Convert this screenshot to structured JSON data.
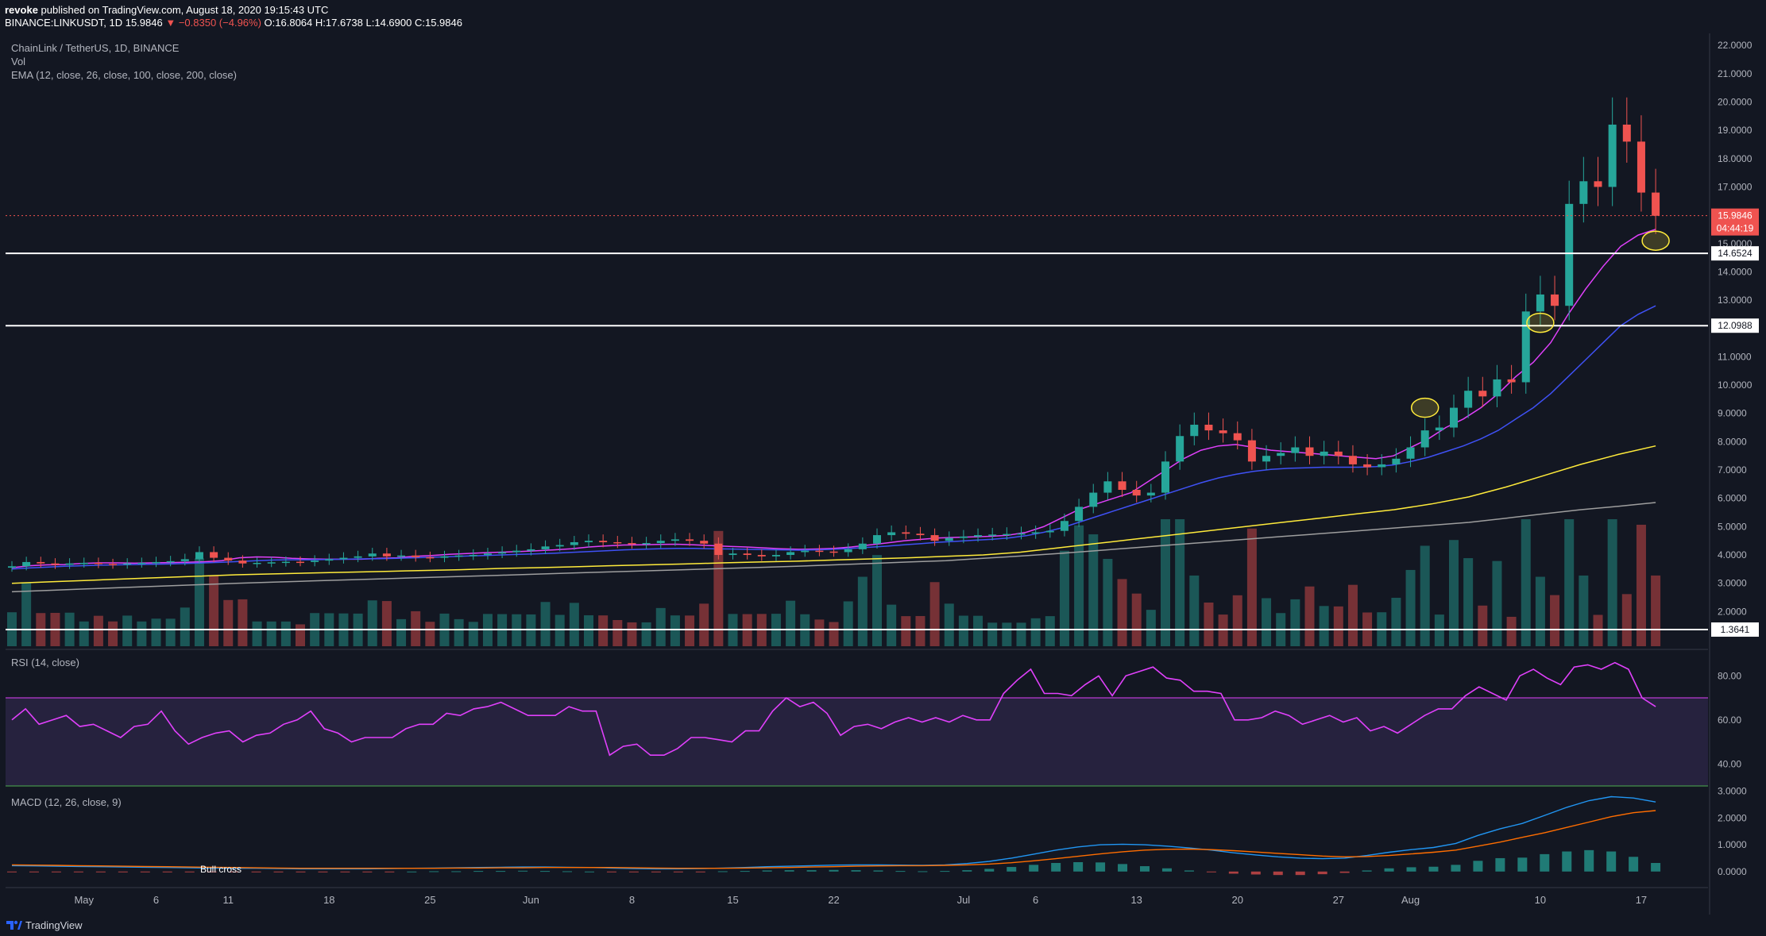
{
  "header": {
    "publisher": "revoke",
    "published_text": "published on TradingView.com, August 18, 2020 19:15:43 UTC",
    "symbol": "BINANCE:LINKUSDT, 1D",
    "last": "15.9846",
    "change": "−0.8350 (−4.96%)",
    "ohlc_open": "O:16.8064",
    "ohlc_high": "H:17.6738",
    "ohlc_low": "L:14.6900",
    "ohlc_close": "C:15.9846"
  },
  "legend": {
    "title": "ChainLink / TetherUS, 1D, BINANCE",
    "vol": "Vol",
    "ema": "EMA (12, close, 26, close, 100, close, 200, close)",
    "rsi": "RSI (14, close)",
    "macd": "MACD (12, 26, close, 9)",
    "annotation_bull": "Bull cross"
  },
  "footer": {
    "brand": "TradingView"
  },
  "colors": {
    "up": "#26a69a",
    "down": "#ef5350",
    "ema12": "#e040fb",
    "ema26": "#3f51f5",
    "ema100": "#ffeb3b",
    "ema200": "#9e9e9e",
    "rsi": "#e040fb",
    "macd": "#2196f3",
    "signal": "#ff6d00"
  },
  "chart_data": [
    {
      "type": "candlestick",
      "title": "ChainLink / TetherUS, 1D, BINANCE",
      "x_start": "2020-04-26",
      "x_ticks": [
        "May",
        "6",
        "11",
        "18",
        "25",
        "Jun",
        "8",
        "15",
        "22",
        "Jul",
        "6",
        "13",
        "20",
        "27",
        "Aug",
        "10",
        "17"
      ],
      "x_tick_dates": [
        "2020-05-01",
        "2020-05-06",
        "2020-05-11",
        "2020-05-18",
        "2020-05-25",
        "2020-06-01",
        "2020-06-08",
        "2020-06-15",
        "2020-06-22",
        "2020-07-01",
        "2020-07-06",
        "2020-07-13",
        "2020-07-20",
        "2020-07-27",
        "2020-08-01",
        "2020-08-10",
        "2020-08-17"
      ],
      "y_ticks": [
        "2.0000",
        "3.0000",
        "4.0000",
        "5.0000",
        "6.0000",
        "7.0000",
        "8.0000",
        "9.0000",
        "10.0000",
        "11.0000",
        "12.0000",
        "13.0000",
        "14.0000",
        "15.0000",
        "16.0000",
        "17.0000",
        "18.0000",
        "19.0000",
        "20.0000",
        "21.0000",
        "22.0000"
      ],
      "ylim": [
        1.0,
        22.2
      ],
      "horizontal_levels": [
        {
          "value": 14.6524,
          "label": "14.6524"
        },
        {
          "value": 12.0988,
          "label": "12.0988"
        },
        {
          "value": 1.3641,
          "label": "1.3641"
        }
      ],
      "last_price": {
        "value": 15.9846,
        "label": "15.9846",
        "countdown": "04:44:19"
      },
      "closes": [
        3.6,
        3.75,
        3.7,
        3.65,
        3.7,
        3.72,
        3.68,
        3.66,
        3.7,
        3.72,
        3.75,
        3.78,
        3.85,
        4.1,
        3.9,
        3.8,
        3.7,
        3.72,
        3.74,
        3.76,
        3.75,
        3.8,
        3.85,
        3.9,
        3.95,
        4.05,
        3.95,
        3.98,
        3.92,
        3.9,
        3.95,
        3.98,
        4.0,
        4.05,
        4.1,
        4.15,
        4.2,
        4.3,
        4.35,
        4.45,
        4.5,
        4.45,
        4.42,
        4.4,
        4.42,
        4.5,
        4.55,
        4.5,
        4.4,
        4.0,
        4.05,
        4.0,
        3.95,
        4.0,
        4.1,
        4.15,
        4.12,
        4.1,
        4.2,
        4.4,
        4.7,
        4.8,
        4.75,
        4.7,
        4.5,
        4.6,
        4.65,
        4.7,
        4.72,
        4.74,
        4.76,
        4.8,
        4.85,
        5.2,
        5.7,
        6.2,
        6.6,
        6.3,
        6.1,
        6.2,
        7.3,
        8.2,
        8.6,
        8.4,
        8.3,
        8.05,
        7.3,
        7.5,
        7.6,
        7.8,
        7.5,
        7.65,
        7.5,
        7.2,
        7.1,
        7.2,
        7.4,
        7.8,
        8.4,
        8.5,
        9.2,
        9.8,
        9.6,
        10.2,
        10.1,
        12.6,
        13.2,
        12.8,
        16.4,
        17.2,
        17.0,
        19.2,
        18.6,
        16.8,
        15.98
      ],
      "series": [
        {
          "name": "EMA 12",
          "start": 0,
          "values": [
            3.55,
            3.62,
            3.65,
            3.66,
            3.7,
            3.72,
            3.72,
            3.71,
            3.72,
            3.73,
            3.74,
            3.76,
            3.8,
            3.9,
            3.93,
            3.92,
            3.88,
            3.86,
            3.85,
            3.85,
            3.85,
            3.88,
            3.9,
            3.95,
            3.98,
            4.02,
            4.05,
            4.08,
            4.1,
            4.12,
            4.15,
            4.18,
            4.22,
            4.28,
            4.32,
            4.35,
            4.36,
            4.37,
            4.38,
            4.36,
            4.33,
            4.3,
            4.28,
            4.25,
            4.22,
            4.2,
            4.21,
            4.23,
            4.28,
            4.35,
            4.42,
            4.5,
            4.55,
            4.6,
            4.62,
            4.64,
            4.66,
            4.7,
            4.8,
            5.0,
            5.3,
            5.6,
            5.8,
            6.0,
            6.2,
            6.6,
            7.0,
            7.4,
            7.7,
            7.85,
            7.9,
            7.8,
            7.7,
            7.65,
            7.6,
            7.55,
            7.5,
            7.45,
            7.4,
            7.5,
            7.8,
            8.1,
            8.5,
            8.8,
            9.2,
            9.7,
            10.3,
            10.8,
            11.5,
            12.5,
            13.4,
            14.2,
            14.9,
            15.3,
            15.5
          ]
        },
        {
          "name": "EMA 26",
          "start": 0,
          "values": [
            3.5,
            3.54,
            3.57,
            3.6,
            3.62,
            3.64,
            3.65,
            3.66,
            3.67,
            3.68,
            3.7,
            3.72,
            3.74,
            3.77,
            3.8,
            3.82,
            3.83,
            3.83,
            3.84,
            3.85,
            3.86,
            3.87,
            3.88,
            3.9,
            3.92,
            3.94,
            3.96,
            3.98,
            4.0,
            4.02,
            4.04,
            4.06,
            4.09,
            4.12,
            4.15,
            4.18,
            4.2,
            4.22,
            4.23,
            4.23,
            4.22,
            4.21,
            4.2,
            4.19,
            4.18,
            4.17,
            4.18,
            4.2,
            4.23,
            4.27,
            4.31,
            4.36,
            4.4,
            4.45,
            4.48,
            4.52,
            4.55,
            4.6,
            4.68,
            4.8,
            4.95,
            5.15,
            5.35,
            5.55,
            5.75,
            5.95,
            6.15,
            6.35,
            6.55,
            6.72,
            6.85,
            6.95,
            7.02,
            7.06,
            7.08,
            7.1,
            7.1,
            7.1,
            7.12,
            7.18,
            7.3,
            7.45,
            7.65,
            7.85,
            8.1,
            8.4,
            8.8,
            9.2,
            9.7,
            10.3,
            10.9,
            11.5,
            12.1,
            12.5,
            12.8
          ]
        },
        {
          "name": "EMA 100",
          "start": 0,
          "values": [
            3.0,
            3.05,
            3.1,
            3.15,
            3.2,
            3.25,
            3.3,
            3.33,
            3.36,
            3.39,
            3.42,
            3.45,
            3.48,
            3.52,
            3.55,
            3.58,
            3.62,
            3.65,
            3.68,
            3.72,
            3.75,
            3.78,
            3.82,
            3.86,
            3.9,
            3.95,
            4.0,
            4.1,
            4.25,
            4.4,
            4.55,
            4.7,
            4.85,
            5.0,
            5.15,
            5.3,
            5.45,
            5.6,
            5.8,
            6.05,
            6.4,
            6.8,
            7.2,
            7.55,
            7.85
          ]
        },
        {
          "name": "EMA 200",
          "start": 0,
          "values": [
            2.7,
            2.75,
            2.8,
            2.85,
            2.9,
            2.95,
            3.0,
            3.04,
            3.08,
            3.12,
            3.16,
            3.2,
            3.24,
            3.28,
            3.32,
            3.36,
            3.4,
            3.44,
            3.48,
            3.52,
            3.56,
            3.6,
            3.65,
            3.7,
            3.75,
            3.8,
            3.88,
            3.96,
            4.05,
            4.15,
            4.25,
            4.35,
            4.45,
            4.55,
            4.65,
            4.75,
            4.85,
            4.95,
            5.05,
            5.15,
            5.3,
            5.45,
            5.6,
            5.72,
            5.85
          ]
        }
      ]
    },
    {
      "type": "line",
      "name": "RSI (14, close)",
      "y_ticks": [
        "40.00",
        "60.00",
        "80.00"
      ],
      "ylim": [
        30,
        92
      ],
      "band": [
        30,
        70
      ],
      "values": [
        60,
        65,
        58,
        60,
        62,
        57,
        58,
        55,
        52,
        57,
        58,
        64,
        55,
        49,
        52,
        54,
        55,
        50,
        53,
        54,
        58,
        60,
        64,
        56,
        54,
        50,
        52,
        52,
        52,
        56,
        58,
        58,
        63,
        62,
        65,
        66,
        68,
        65,
        62,
        62,
        62,
        66,
        64,
        64,
        44,
        48,
        49,
        44,
        44,
        47,
        52,
        52,
        51,
        50,
        55,
        55,
        64,
        70,
        66,
        68,
        63,
        53,
        57,
        58,
        56,
        59,
        61,
        59,
        61,
        59,
        62,
        60,
        60,
        72,
        78,
        83,
        72,
        72,
        71,
        76,
        80,
        71,
        80,
        82,
        84,
        79,
        78,
        73,
        73,
        72,
        60,
        60,
        61,
        64,
        62,
        58,
        60,
        62,
        59,
        61,
        55,
        57,
        54,
        58,
        62,
        65,
        65,
        71,
        75,
        72,
        69,
        80,
        83,
        79,
        76,
        84,
        85,
        83,
        86,
        83,
        70,
        66
      ]
    },
    {
      "type": "line",
      "name": "MACD (12, 26, close, 9)",
      "y_ticks": [
        "0.0000",
        "1.0000",
        "2.0000",
        "3.0000"
      ],
      "ylim": [
        -0.6,
        3.2
      ],
      "macd": [
        0.22,
        0.21,
        0.2,
        0.19,
        0.18,
        0.17,
        0.16,
        0.15,
        0.14,
        0.13,
        0.12,
        0.12,
        0.11,
        0.1,
        0.1,
        0.1,
        0.1,
        0.11,
        0.12,
        0.13,
        0.14,
        0.15,
        0.16,
        0.17,
        0.17,
        0.16,
        0.15,
        0.13,
        0.11,
        0.1,
        0.1,
        0.11,
        0.13,
        0.15,
        0.18,
        0.2,
        0.22,
        0.24,
        0.25,
        0.25,
        0.24,
        0.23,
        0.25,
        0.3,
        0.38,
        0.5,
        0.65,
        0.8,
        0.92,
        1.0,
        1.02,
        1.0,
        0.95,
        0.88,
        0.8,
        0.7,
        0.62,
        0.55,
        0.5,
        0.48,
        0.5,
        0.6,
        0.72,
        0.82,
        0.9,
        1.05,
        1.35,
        1.6,
        1.8,
        2.1,
        2.4,
        2.65,
        2.8,
        2.75,
        2.6
      ],
      "signal": [
        0.25,
        0.24,
        0.23,
        0.22,
        0.21,
        0.2,
        0.19,
        0.18,
        0.17,
        0.16,
        0.15,
        0.14,
        0.13,
        0.12,
        0.12,
        0.12,
        0.12,
        0.12,
        0.12,
        0.12,
        0.13,
        0.13,
        0.14,
        0.14,
        0.15,
        0.15,
        0.15,
        0.15,
        0.14,
        0.13,
        0.12,
        0.12,
        0.12,
        0.13,
        0.14,
        0.15,
        0.17,
        0.18,
        0.2,
        0.21,
        0.22,
        0.22,
        0.23,
        0.25,
        0.28,
        0.33,
        0.4,
        0.48,
        0.57,
        0.66,
        0.74,
        0.8,
        0.83,
        0.84,
        0.82,
        0.78,
        0.73,
        0.68,
        0.63,
        0.58,
        0.55,
        0.56,
        0.6,
        0.66,
        0.72,
        0.8,
        0.95,
        1.1,
        1.28,
        1.45,
        1.65,
        1.85,
        2.05,
        2.2,
        2.28
      ]
    }
  ]
}
